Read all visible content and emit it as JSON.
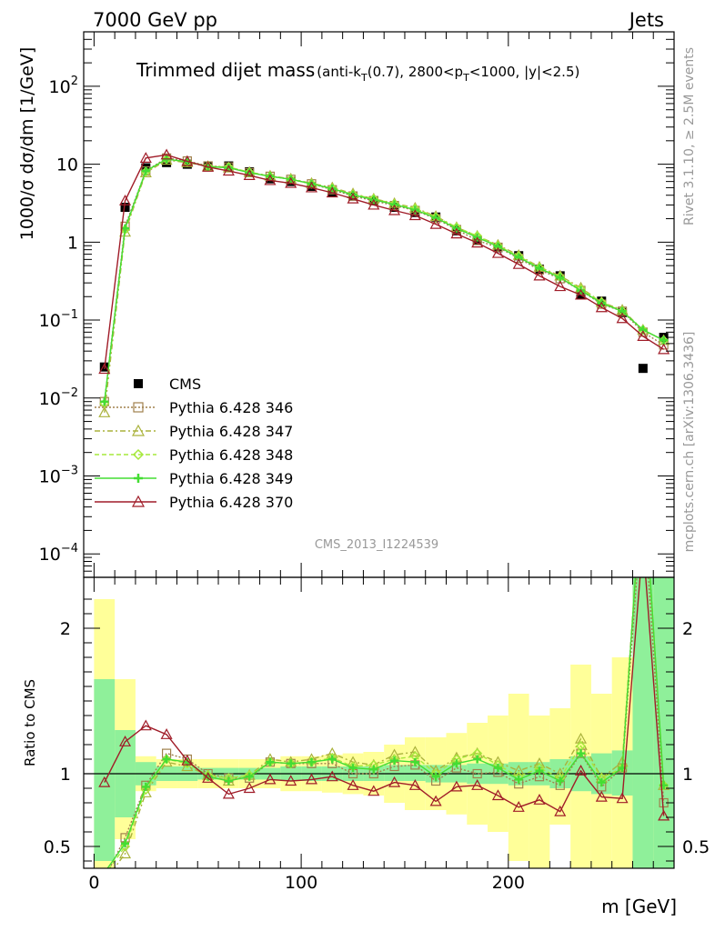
{
  "header": {
    "left": "7000 GeV pp",
    "right": "Jets"
  },
  "side": {
    "rivet": "Rivet 3.1.10, ≥ 2.5M events",
    "site": "mcplots.cern.ch [arXiv:1306.3436]"
  },
  "chart_data": [
    {
      "type": "line",
      "title": "Trimmed dijet mass",
      "subtitle": "(anti-k_T(0.7), 2800<p_T<1000, |y|<2.5)",
      "ylabel": "1000/σ dσ/dm [1/GeV]",
      "xlabel": "m [GeV]",
      "yscale": "log",
      "ylim": [
        5e-05,
        500
      ],
      "xlim": [
        -5,
        280
      ],
      "analysis_label": "CMS_2013_I1224539",
      "x": [
        5,
        15,
        25,
        35,
        45,
        55,
        65,
        75,
        85,
        95,
        105,
        115,
        125,
        135,
        145,
        155,
        165,
        175,
        185,
        195,
        205,
        215,
        225,
        235,
        245,
        255,
        265,
        275
      ],
      "series": [
        {
          "name": "CMS",
          "color": "#000000",
          "marker": "filled-square",
          "values": [
            0.025,
            2.8,
            9.0,
            10.5,
            10.0,
            9.5,
            9.5,
            8.0,
            6.5,
            6.0,
            5.2,
            4.4,
            3.9,
            3.4,
            2.8,
            2.4,
            2.1,
            1.4,
            1.05,
            0.85,
            0.67,
            0.45,
            0.37,
            0.21,
            0.175,
            0.125,
            0.024,
            0.06
          ]
        },
        {
          "name": "Pythia 6.428 346",
          "color": "#a0804c",
          "marker": "open-square",
          "dash": "2,2",
          "values": [
            0.009,
            1.6,
            8.2,
            12.0,
            11.0,
            9.5,
            9.2,
            7.8,
            7.0,
            6.4,
            5.6,
            4.7,
            3.9,
            3.4,
            2.95,
            2.55,
            2.0,
            1.45,
            1.05,
            0.86,
            0.62,
            0.44,
            0.34,
            0.24,
            0.16,
            0.13,
            0.07,
            0.048
          ]
        },
        {
          "name": "Pythia 6.428 347",
          "color": "#aab23c",
          "marker": "open-triangle",
          "dash": "6,3,2,3",
          "values": [
            0.0065,
            1.35,
            7.8,
            11.3,
            10.5,
            9.4,
            9.0,
            7.9,
            7.1,
            6.5,
            5.7,
            5.0,
            4.2,
            3.6,
            3.15,
            2.75,
            2.15,
            1.55,
            1.2,
            0.92,
            0.68,
            0.48,
            0.37,
            0.26,
            0.17,
            0.135,
            0.075,
            0.055
          ]
        },
        {
          "name": "Pythia 6.428 348",
          "color": "#a6e83c",
          "marker": "open-diamond",
          "dash": "5,3",
          "values": [
            0.0085,
            1.45,
            8.0,
            11.6,
            10.7,
            9.4,
            9.2,
            7.9,
            7.0,
            6.4,
            5.6,
            4.9,
            4.1,
            3.6,
            3.1,
            2.7,
            2.1,
            1.55,
            1.2,
            0.9,
            0.66,
            0.47,
            0.36,
            0.25,
            0.17,
            0.13,
            0.075,
            0.055
          ]
        },
        {
          "name": "Pythia 6.428 349",
          "color": "#44dd33",
          "marker": "open-cross",
          "dash": "",
          "values": [
            0.009,
            1.5,
            8.2,
            11.6,
            10.8,
            9.3,
            9.0,
            7.8,
            7.0,
            6.4,
            5.6,
            4.85,
            4.05,
            3.5,
            3.05,
            2.6,
            2.05,
            1.5,
            1.15,
            0.88,
            0.64,
            0.46,
            0.35,
            0.24,
            0.165,
            0.13,
            0.075,
            0.055
          ]
        },
        {
          "name": "Pythia 6.428 370",
          "color": "#a01c28",
          "marker": "open-triangle",
          "dash": "",
          "values": [
            0.0235,
            3.4,
            12.0,
            13.2,
            10.9,
            9.2,
            8.2,
            7.2,
            6.2,
            5.7,
            5.0,
            4.3,
            3.6,
            3.0,
            2.55,
            2.2,
            1.7,
            1.28,
            0.98,
            0.72,
            0.52,
            0.37,
            0.27,
            0.21,
            0.145,
            0.105,
            0.062,
            0.042
          ]
        }
      ]
    },
    {
      "type": "line",
      "ylabel": "Ratio to CMS",
      "xlabel": "m [GeV]",
      "ylim": [
        0.35,
        2.35
      ],
      "x_ticks": [
        0,
        100,
        200
      ],
      "y_ticks": [
        0.5,
        1,
        2
      ],
      "bands": {
        "bin_edges": [
          0,
          10,
          20,
          30,
          40,
          50,
          60,
          70,
          80,
          90,
          100,
          110,
          120,
          130,
          140,
          150,
          160,
          170,
          180,
          190,
          200,
          210,
          220,
          230,
          240,
          250,
          260,
          270,
          280
        ],
        "stat_color": "#8ff09a",
        "syst_color": "#ffff99",
        "stat_lo": [
          0.4,
          0.7,
          0.92,
          0.95,
          0.95,
          0.96,
          0.96,
          0.96,
          0.96,
          0.95,
          0.95,
          0.95,
          0.95,
          0.95,
          0.95,
          0.95,
          0.94,
          0.94,
          0.93,
          0.93,
          0.92,
          0.92,
          0.9,
          0.88,
          0.86,
          0.85,
          0.35,
          0.35
        ],
        "stat_hi": [
          1.65,
          1.3,
          1.08,
          1.05,
          1.05,
          1.04,
          1.04,
          1.04,
          1.04,
          1.05,
          1.05,
          1.05,
          1.05,
          1.05,
          1.06,
          1.06,
          1.06,
          1.06,
          1.07,
          1.07,
          1.08,
          1.08,
          1.1,
          1.12,
          1.14,
          1.16,
          2.35,
          2.35
        ],
        "syst_lo": [
          0.35,
          0.55,
          0.88,
          0.9,
          0.9,
          0.9,
          0.9,
          0.9,
          0.9,
          0.88,
          0.88,
          0.87,
          0.86,
          0.85,
          0.8,
          0.75,
          0.75,
          0.72,
          0.65,
          0.6,
          0.4,
          0.35,
          0.65,
          0.35,
          0.35,
          0.35,
          0.35,
          0.35
        ],
        "syst_hi": [
          2.2,
          1.65,
          1.12,
          1.1,
          1.1,
          1.1,
          1.1,
          1.1,
          1.1,
          1.12,
          1.12,
          1.13,
          1.14,
          1.15,
          1.2,
          1.25,
          1.25,
          1.28,
          1.35,
          1.4,
          1.55,
          1.4,
          1.45,
          1.75,
          1.55,
          1.8,
          2.35,
          2.35
        ]
      },
      "series": [
        {
          "name": "Pythia 6.428 346",
          "values": [
            0.28,
            0.56,
            0.92,
            1.14,
            1.1,
            1.0,
            0.97,
            0.97,
            1.08,
            1.07,
            1.07,
            1.07,
            1.0,
            1.0,
            1.05,
            1.06,
            0.95,
            1.04,
            1.0,
            1.01,
            0.93,
            0.98,
            0.92,
            1.14,
            0.91,
            1.04,
            2.9,
            0.8
          ]
        },
        {
          "name": "Pythia 6.428 347",
          "values": [
            0.26,
            0.45,
            0.87,
            1.08,
            1.05,
            0.99,
            0.95,
            0.99,
            1.1,
            1.08,
            1.1,
            1.14,
            1.08,
            1.06,
            1.13,
            1.15,
            1.02,
            1.11,
            1.14,
            1.08,
            1.02,
            1.07,
            1.0,
            1.24,
            0.97,
            1.08,
            3.1,
            0.92
          ]
        },
        {
          "name": "Pythia 6.428 348",
          "values": [
            0.3,
            0.5,
            0.89,
            1.1,
            1.07,
            0.99,
            0.97,
            0.99,
            1.08,
            1.07,
            1.08,
            1.11,
            1.05,
            1.06,
            1.1,
            1.12,
            1.0,
            1.1,
            1.14,
            1.06,
            0.98,
            1.04,
            0.97,
            1.19,
            0.97,
            1.04,
            3.1,
            0.92
          ]
        },
        {
          "name": "Pythia 6.428 349",
          "values": [
            0.32,
            0.52,
            0.91,
            1.1,
            1.08,
            0.98,
            0.95,
            0.98,
            1.08,
            1.07,
            1.08,
            1.1,
            1.04,
            1.03,
            1.09,
            1.08,
            0.98,
            1.07,
            1.1,
            1.04,
            0.96,
            1.02,
            0.95,
            1.14,
            0.94,
            1.04,
            3.1,
            0.92
          ]
        },
        {
          "name": "Pythia 6.428 370",
          "values": [
            0.94,
            1.22,
            1.33,
            1.27,
            1.09,
            0.97,
            0.86,
            0.9,
            0.96,
            0.95,
            0.96,
            0.98,
            0.92,
            0.88,
            0.94,
            0.92,
            0.81,
            0.91,
            0.92,
            0.85,
            0.77,
            0.82,
            0.74,
            1.02,
            0.84,
            0.83,
            2.6,
            0.71
          ]
        }
      ]
    }
  ]
}
